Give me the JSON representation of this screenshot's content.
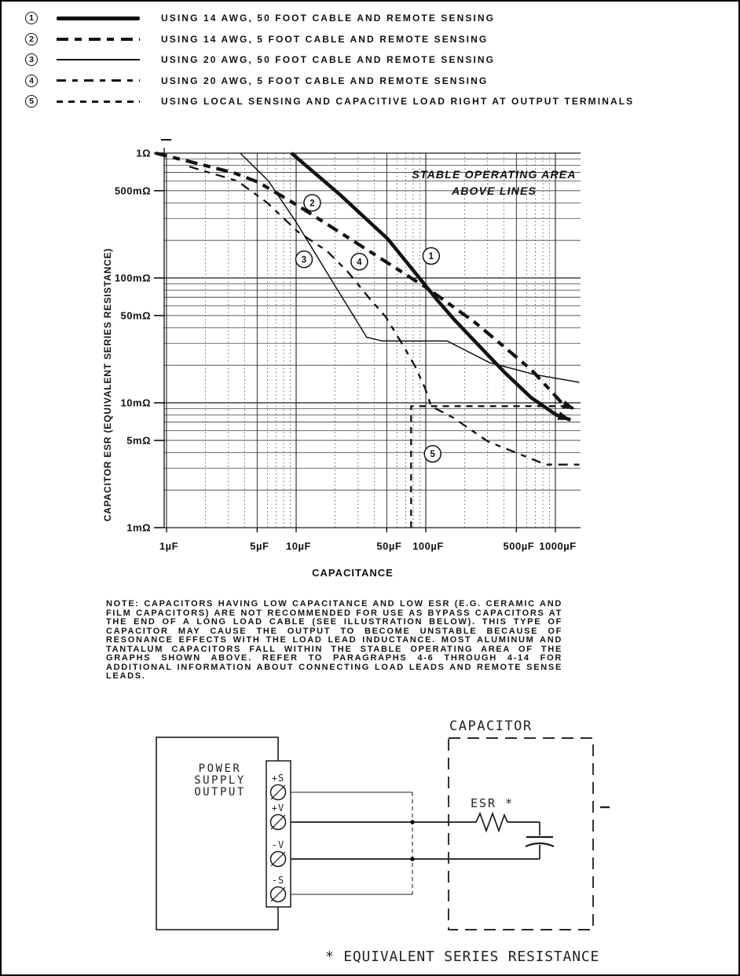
{
  "legend": {
    "items": [
      {
        "num": "1",
        "style": "thick-solid",
        "label": "USING 14 AWG, 50 FOOT CABLE AND REMOTE SENSING"
      },
      {
        "num": "2",
        "style": "thick-dash",
        "label": "USING 14 AWG, 5 FOOT CABLE AND REMOTE SENSING"
      },
      {
        "num": "3",
        "style": "thin-solid",
        "label": "USING 20 AWG, 50 FOOT CABLE AND REMOTE SENSING"
      },
      {
        "num": "4",
        "style": "long-dash",
        "label": "USING 20 AWG, 5 FOOT CABLE AND REMOTE SENSING"
      },
      {
        "num": "5",
        "style": "short-dash",
        "label": "USING LOCAL SENSING AND CAPACITIVE LOAD RIGHT AT OUTPUT TERMINALS"
      }
    ]
  },
  "chart_data": {
    "type": "line",
    "annotation_line1": "STABLE OPERATING AREA",
    "annotation_line2": "ABOVE LINES",
    "xlabel": "CAPACITANCE",
    "ylabel": "CAPACITOR ESR (EQUIVALENT SERIES RESISTANCE)",
    "x_unit": "µF",
    "y_unit": "mΩ",
    "xlim": [
      1,
      1500
    ],
    "ylim": [
      1,
      1000
    ],
    "x_scale": "log",
    "y_scale": "log",
    "grid": true,
    "x_ticks": [
      {
        "v": 1,
        "label": "1µF"
      },
      {
        "v": 5,
        "label": "5µF"
      },
      {
        "v": 10,
        "label": "10µF"
      },
      {
        "v": 50,
        "label": "50µF"
      },
      {
        "v": 100,
        "label": "100µF"
      },
      {
        "v": 500,
        "label": "500µF"
      },
      {
        "v": 1000,
        "label": "1000µF"
      }
    ],
    "y_ticks": [
      {
        "v": 1000,
        "label": "1Ω"
      },
      {
        "v": 500,
        "label": "500mΩ"
      },
      {
        "v": 100,
        "label": "100mΩ"
      },
      {
        "v": 50,
        "label": "50mΩ"
      },
      {
        "v": 10,
        "label": "10mΩ"
      },
      {
        "v": 5,
        "label": "5mΩ"
      },
      {
        "v": 1,
        "label": "1mΩ"
      }
    ],
    "series": [
      {
        "id": "1",
        "legend": "USING 14 AWG, 50 FOOT CABLE AND REMOTE SENSING",
        "style": "thick-solid",
        "arrow_end": true,
        "label_at": [
          110,
          150
        ],
        "points": [
          [
            9.2,
            1000
          ],
          [
            22,
            460
          ],
          [
            51,
            205
          ],
          [
            119,
            69
          ],
          [
            167,
            46
          ],
          [
            240,
            31
          ],
          [
            406,
            17.5
          ],
          [
            650,
            11
          ],
          [
            1015,
            8.0
          ],
          [
            1310,
            7.3
          ]
        ]
      },
      {
        "id": "2",
        "legend": "USING 14 AWG, 5 FOOT CABLE AND REMOTE SENSING",
        "style": "thick-dash",
        "arrow_end": true,
        "label_at": [
          13.3,
          400
        ],
        "points": [
          [
            0.82,
            1000
          ],
          [
            1.7,
            830
          ],
          [
            3.3,
            695
          ],
          [
            5.1,
            585
          ],
          [
            10.3,
            380
          ],
          [
            28,
            196
          ],
          [
            106,
            81
          ],
          [
            240,
            44
          ],
          [
            380,
            29.5
          ],
          [
            656,
            18.3
          ],
          [
            1150,
            9.7
          ],
          [
            1420,
            8.9
          ]
        ]
      },
      {
        "id": "3",
        "legend": "USING 20 AWG, 50 FOOT CABLE AND REMOTE SENSING",
        "style": "thin-solid",
        "arrow_end": false,
        "label_at": [
          11.5,
          141
        ],
        "points": [
          [
            3.7,
            1000
          ],
          [
            6.1,
            600
          ],
          [
            10,
            280
          ],
          [
            20,
            86
          ],
          [
            35,
            33.5
          ],
          [
            46,
            31.3
          ],
          [
            146,
            31.3
          ],
          [
            310,
            21
          ],
          [
            700,
            16.8
          ],
          [
            1530,
            14.6
          ]
        ]
      },
      {
        "id": "4",
        "legend": "USING 20 AWG, 5 FOOT CABLE AND REMOTE SENSING",
        "style": "long-dash",
        "arrow_end": false,
        "label_at": [
          30.7,
          135
        ],
        "points": [
          [
            1.5,
            780
          ],
          [
            3.5,
            600
          ],
          [
            5.9,
            405
          ],
          [
            10.3,
            235
          ],
          [
            17.3,
            164
          ],
          [
            25,
            112
          ],
          [
            37,
            68
          ],
          [
            49,
            49
          ],
          [
            66,
            29.5
          ],
          [
            74,
            24
          ],
          [
            83,
            19.5
          ],
          [
            99,
            13
          ],
          [
            110,
            9.4
          ],
          [
            163,
            7.6
          ],
          [
            302,
            4.9
          ],
          [
            845,
            3.2
          ],
          [
            1530,
            3.2
          ]
        ]
      },
      {
        "id": "5",
        "legend": "USING LOCAL SENSING AND CAPACITIVE LOAD RIGHT AT OUTPUT TERMINALS",
        "style": "short-dash",
        "arrow_end": false,
        "label_at": [
          113,
          3.9
        ],
        "points": [
          [
            77,
            1
          ],
          [
            77,
            9.4
          ],
          [
            1350,
            9.4
          ]
        ]
      }
    ]
  },
  "note": {
    "label": "NOTE",
    "body": ": CAPACITORS HAVING LOW CAPACITANCE AND LOW ESR (E.G. CERAMIC AND FILM CAPACITORS) ARE NOT RECOMMENDED FOR USE AS BYPASS CAPACITORS AT THE END OF A LONG LOAD CABLE (SEE ILLUSTRATION BELOW). THIS TYPE OF CAPACITOR MAY CAUSE THE OUTPUT TO BECOME UNSTABLE BECAUSE OF RESONANCE EFFECTS WITH THE LOAD LEAD INDUCTANCE. MOST ALUMINUM AND TANTALUM CAPACITORS FALL WITHIN THE STABLE OPERATING AREA OF THE GRAPHS SHOWN ABOVE. REFER TO PARAGRAPHS 4-6 THROUGH 4-14 FOR ADDITIONAL INFORMATION ABOUT CONNECTING LOAD LEADS AND REMOTE SENSE LEADS."
  },
  "diagram": {
    "power_supply_lines": [
      "POWER",
      "SUPPLY",
      "OUTPUT"
    ],
    "terminals": [
      "+S",
      "+V",
      "-V",
      "-S"
    ],
    "capacitor_label": "CAPACITOR",
    "esr_label": "ESR *",
    "footnote": "* EQUIVALENT SERIES RESISTANCE"
  }
}
